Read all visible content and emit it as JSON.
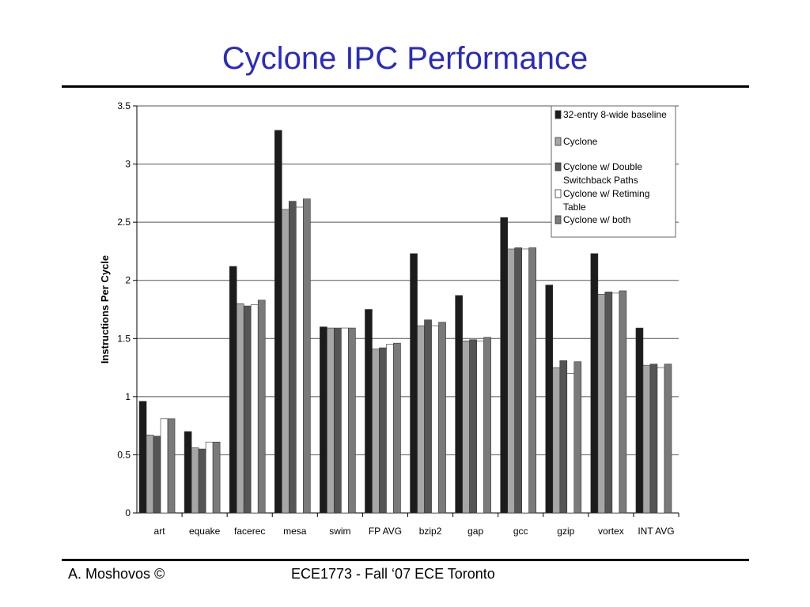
{
  "slide": {
    "title": "Cyclone IPC Performance",
    "footer_left": "A. Moshovos ©",
    "footer_center": "ECE1773 - Fall ‘07 ECE Toronto"
  },
  "chart_data": {
    "type": "bar",
    "ylabel": "Instructions Per Cycle",
    "ylim": [
      0,
      3.5
    ],
    "yticks": [
      0,
      0.5,
      1,
      1.5,
      2,
      2.5,
      3,
      3.5
    ],
    "ytick_labels": [
      "0",
      "0.5",
      "1",
      "1.5",
      "2",
      "2.5",
      "3",
      "3.5"
    ],
    "grid": true,
    "legend_position": "top-right",
    "categories": [
      "art",
      "equake",
      "facerec",
      "mesa",
      "swim",
      "FP AVG",
      "bzip2",
      "gap",
      "gcc",
      "gzip",
      "vortex",
      "INT AVG"
    ],
    "series": [
      {
        "name": "32-entry 8-wide baseline",
        "color": "#1c1c1c",
        "values": [
          0.96,
          0.7,
          2.12,
          3.29,
          1.6,
          1.75,
          2.23,
          1.87,
          2.54,
          1.96,
          2.23,
          1.59
        ]
      },
      {
        "name": "Cyclone",
        "color": "#a6a6a6",
        "values": [
          0.67,
          0.56,
          1.8,
          2.61,
          1.59,
          1.41,
          1.61,
          1.48,
          2.27,
          1.25,
          1.88,
          1.27
        ]
      },
      {
        "name": "Cyclone w/ Double Switchback Paths",
        "color": "#555555",
        "values": [
          0.66,
          0.55,
          1.78,
          2.68,
          1.59,
          1.42,
          1.66,
          1.49,
          2.28,
          1.31,
          1.9,
          1.28
        ]
      },
      {
        "name": "Cyclone w/ Retiming Table",
        "color": "#ffffff",
        "values": [
          0.81,
          0.61,
          1.79,
          2.63,
          1.59,
          1.45,
          1.61,
          1.48,
          2.27,
          1.2,
          1.89,
          1.25
        ]
      },
      {
        "name": "Cyclone w/ both",
        "color": "#7a7a7a",
        "values": [
          0.81,
          0.61,
          1.83,
          2.7,
          1.59,
          1.46,
          1.64,
          1.51,
          2.28,
          1.3,
          1.91,
          1.28
        ]
      }
    ],
    "legend_lines": [
      [
        "32-entry 8-wide baseline"
      ],
      [
        "Cyclone"
      ],
      [
        "Cyclone w/ Double",
        "Switchback Paths"
      ],
      [
        "Cyclone w/ Retiming",
        "Table"
      ],
      [
        "Cyclone w/ both"
      ]
    ]
  }
}
